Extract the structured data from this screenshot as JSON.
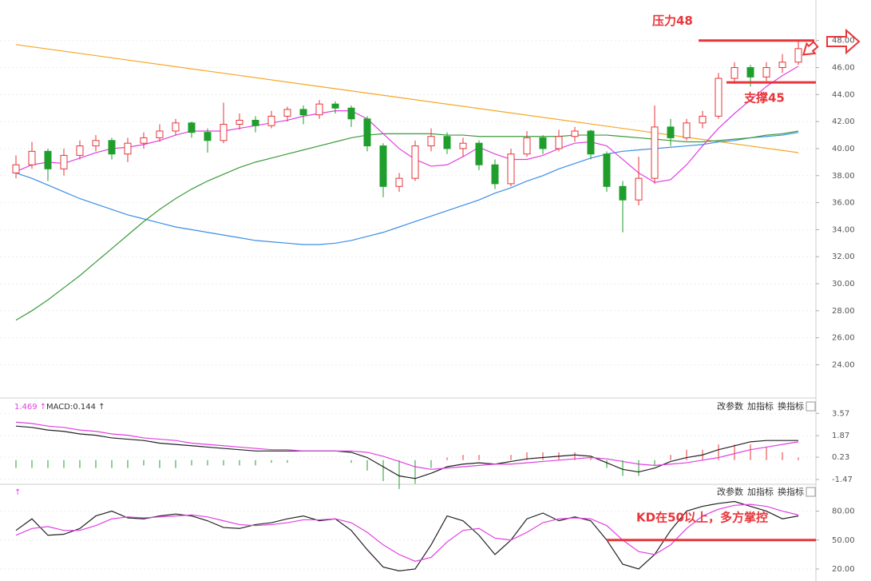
{
  "chart_data": [
    {
      "type": "candlestick",
      "up_color": "#e8353a",
      "down_color": "#1f9e2c",
      "open": [
        38.2,
        38.8,
        39.8,
        38.5,
        39.5,
        40.2,
        40.6,
        39.6,
        40.4,
        40.8,
        41.3,
        41.9,
        41.2,
        40.6,
        41.8,
        42.1,
        41.7,
        42.4,
        42.9,
        42.5,
        43.3,
        43.0,
        42.2,
        40.2,
        37.2,
        37.8,
        40.2,
        40.9,
        40.0,
        40.4,
        38.8,
        37.4,
        39.6,
        40.8,
        40.0,
        40.9,
        41.3,
        39.6,
        37.2,
        36.2,
        37.8,
        41.6,
        40.8,
        41.9,
        42.4,
        45.2,
        46.0,
        45.3,
        46.0,
        46.4
      ],
      "high": [
        39.5,
        40.5,
        40.0,
        40.0,
        40.6,
        41.0,
        40.8,
        40.8,
        41.2,
        41.8,
        42.2,
        42.0,
        41.5,
        43.4,
        42.6,
        42.4,
        42.8,
        43.1,
        43.2,
        43.6,
        43.5,
        43.2,
        42.4,
        40.4,
        38.2,
        40.6,
        41.5,
        41.2,
        40.8,
        40.6,
        39.2,
        40.0,
        41.3,
        41.0,
        41.4,
        41.6,
        41.4,
        39.8,
        37.6,
        39.4,
        43.2,
        42.2,
        42.2,
        42.8,
        45.6,
        46.4,
        46.2,
        46.4,
        47.0,
        48.0
      ],
      "low": [
        37.8,
        38.5,
        37.6,
        38.0,
        39.2,
        39.8,
        39.2,
        39.0,
        40.0,
        40.5,
        41.0,
        40.8,
        39.7,
        40.4,
        41.4,
        41.2,
        41.5,
        42.0,
        41.8,
        42.2,
        42.6,
        41.6,
        39.8,
        36.4,
        36.8,
        37.6,
        39.8,
        39.6,
        39.4,
        38.4,
        37.0,
        37.2,
        39.4,
        39.6,
        39.8,
        40.5,
        39.2,
        36.8,
        33.8,
        35.8,
        37.4,
        40.2,
        40.6,
        41.5,
        42.2,
        44.8,
        44.6,
        45.0,
        45.6,
        46.2
      ],
      "close": [
        38.8,
        39.8,
        38.5,
        39.5,
        40.2,
        40.6,
        39.6,
        40.4,
        40.8,
        41.3,
        41.9,
        41.2,
        40.6,
        41.8,
        42.1,
        41.7,
        42.4,
        42.9,
        42.5,
        43.3,
        43.0,
        42.2,
        40.2,
        37.2,
        37.8,
        40.2,
        40.9,
        40.0,
        40.4,
        38.8,
        37.4,
        39.6,
        40.8,
        40.0,
        40.9,
        41.3,
        39.6,
        37.2,
        36.2,
        37.8,
        41.6,
        40.8,
        41.9,
        42.4,
        45.2,
        46.0,
        45.3,
        46.0,
        46.4,
        47.4
      ],
      "series": [
        {
          "color": "#3a8ee6",
          "values": [
            38.2,
            37.8,
            37.3,
            36.8,
            36.3,
            35.9,
            35.5,
            35.1,
            34.8,
            34.5,
            34.2,
            34.0,
            33.8,
            33.6,
            33.4,
            33.2,
            33.1,
            33.0,
            32.9,
            32.9,
            33.0,
            33.2,
            33.5,
            33.8,
            34.2,
            34.6,
            35.0,
            35.4,
            35.8,
            36.2,
            36.7,
            37.1,
            37.6,
            38.0,
            38.5,
            38.9,
            39.3,
            39.6,
            39.8,
            39.9,
            40.0,
            40.1,
            40.2,
            40.3,
            40.5,
            40.6,
            40.8,
            40.9,
            41.0,
            41.2
          ]
        },
        {
          "color": "#3c9a3c",
          "values": [
            27.3,
            28.0,
            28.8,
            29.7,
            30.6,
            31.6,
            32.6,
            33.6,
            34.6,
            35.5,
            36.3,
            37.0,
            37.6,
            38.1,
            38.6,
            39.0,
            39.3,
            39.6,
            39.9,
            40.2,
            40.5,
            40.8,
            41.0,
            41.1,
            41.1,
            41.1,
            41.1,
            41.0,
            41.0,
            40.9,
            40.9,
            40.9,
            40.9,
            40.9,
            40.9,
            41.0,
            41.0,
            41.0,
            40.9,
            40.8,
            40.7,
            40.6,
            40.5,
            40.5,
            40.6,
            40.7,
            40.8,
            41.0,
            41.1,
            41.3
          ]
        },
        {
          "color": "#e040e0",
          "values": [
            38.3,
            38.8,
            39.0,
            38.9,
            39.3,
            39.7,
            40.0,
            40.1,
            40.3,
            40.6,
            41.0,
            41.3,
            41.3,
            41.3,
            41.5,
            41.7,
            41.9,
            42.1,
            42.4,
            42.6,
            42.8,
            42.8,
            42.2,
            41.1,
            40.0,
            39.2,
            38.7,
            38.8,
            39.4,
            40.1,
            39.6,
            39.2,
            39.2,
            39.5,
            40.0,
            40.4,
            40.5,
            40.2,
            39.2,
            38.2,
            37.5,
            37.7,
            38.8,
            40.2,
            41.5,
            42.6,
            43.6,
            44.6,
            45.4,
            46.1
          ]
        }
      ],
      "trendline": {
        "color": "#f5a623",
        "values": [
          47.7,
          39.7
        ]
      },
      "annotations": [
        {
          "text": "压力48",
          "value": 48
        },
        {
          "text": "支撑45",
          "value": 44.9
        }
      ],
      "ylim": [
        21.6,
        51
      ],
      "yticks": [
        {
          "value": 24,
          "label": "24.00"
        },
        {
          "value": 26,
          "label": "26.00"
        },
        {
          "value": 28,
          "label": "28.00"
        },
        {
          "value": 30,
          "label": "30.00"
        },
        {
          "value": 32,
          "label": "32.00"
        },
        {
          "value": 34,
          "label": "34.00"
        },
        {
          "value": 36,
          "label": "36.00"
        },
        {
          "value": 38,
          "label": "38.00"
        },
        {
          "value": 40,
          "label": "40.00"
        },
        {
          "value": 42,
          "label": "42.00"
        },
        {
          "value": 44,
          "label": "44.00"
        },
        {
          "value": 46,
          "label": "46.00"
        },
        {
          "value": 48,
          "label": "48.00"
        }
      ]
    },
    {
      "type": "macd",
      "header": [
        "1.469 ↑",
        "MACD:0.144 ↑"
      ],
      "toolbar": [
        "改参数",
        "加指标",
        "换指标"
      ],
      "series": [
        {
          "color": "#222222",
          "values": [
            2.6,
            2.5,
            2.3,
            2.2,
            2.0,
            1.9,
            1.7,
            1.6,
            1.5,
            1.3,
            1.2,
            1.1,
            1.0,
            0.9,
            0.8,
            0.7,
            0.7,
            0.7,
            0.7,
            0.7,
            0.7,
            0.6,
            0.2,
            -0.5,
            -1.2,
            -1.4,
            -1.0,
            -0.5,
            -0.3,
            -0.2,
            -0.3,
            -0.1,
            0.1,
            0.2,
            0.3,
            0.4,
            0.3,
            -0.2,
            -0.7,
            -0.9,
            -0.6,
            -0.1,
            0.2,
            0.4,
            0.8,
            1.1,
            1.4,
            1.5,
            1.5,
            1.5
          ]
        },
        {
          "color": "#e040e0",
          "values": [
            2.9,
            2.8,
            2.6,
            2.5,
            2.3,
            2.2,
            2.0,
            1.9,
            1.7,
            1.6,
            1.5,
            1.3,
            1.2,
            1.1,
            1.0,
            0.9,
            0.8,
            0.8,
            0.7,
            0.7,
            0.7,
            0.7,
            0.6,
            0.3,
            -0.1,
            -0.5,
            -0.7,
            -0.6,
            -0.5,
            -0.4,
            -0.3,
            -0.3,
            -0.2,
            -0.1,
            0.0,
            0.1,
            0.2,
            0.1,
            -0.1,
            -0.3,
            -0.4,
            -0.3,
            -0.2,
            0.0,
            0.2,
            0.5,
            0.8,
            1.0,
            1.2,
            1.4
          ]
        }
      ],
      "histogram": [
        -0.6,
        -0.6,
        -0.6,
        -0.6,
        -0.6,
        -0.6,
        -0.6,
        -0.6,
        -0.4,
        -0.6,
        -0.6,
        -0.4,
        -0.4,
        -0.4,
        -0.4,
        -0.4,
        -0.2,
        -0.2,
        0,
        0,
        0,
        -0.2,
        -0.8,
        -1.6,
        -2.2,
        -1.8,
        -0.6,
        0.2,
        0.4,
        0.4,
        0,
        0.4,
        0.6,
        0.6,
        0.6,
        0.6,
        0.2,
        -0.6,
        -1.2,
        -1.2,
        -0.4,
        0.4,
        0.8,
        0.8,
        1.2,
        1.2,
        1.2,
        1.0,
        0.6,
        0.2
      ],
      "up_color": "#e8353a",
      "down_color": "#1f9e2c",
      "ylim": [
        -1.78,
        4.44
      ],
      "yticks": [
        3.57,
        1.87,
        0.23,
        -1.47
      ]
    },
    {
      "type": "kd",
      "header": [
        "↑"
      ],
      "toolbar": [
        "改参数",
        "加指标",
        "换指标"
      ],
      "series": [
        {
          "color": "#222222",
          "values": [
            60,
            72,
            55,
            56,
            62,
            75,
            80,
            73,
            72,
            75,
            77,
            75,
            70,
            63,
            62,
            66,
            68,
            72,
            75,
            70,
            72,
            60,
            40,
            22,
            18,
            20,
            45,
            75,
            70,
            55,
            35,
            50,
            72,
            78,
            70,
            74,
            70,
            50,
            25,
            20,
            35,
            60,
            80,
            85,
            88,
            90,
            85,
            80,
            72,
            75
          ]
        },
        {
          "color": "#e040e0",
          "values": [
            55,
            62,
            64,
            60,
            60,
            65,
            72,
            74,
            73,
            74,
            75,
            76,
            74,
            70,
            66,
            65,
            66,
            68,
            71,
            71,
            72,
            68,
            58,
            45,
            35,
            28,
            32,
            48,
            60,
            62,
            52,
            50,
            58,
            68,
            72,
            73,
            72,
            65,
            50,
            38,
            35,
            45,
            62,
            75,
            82,
            86,
            87,
            85,
            80,
            76
          ]
        }
      ],
      "annotations": [
        {
          "text": "KD在50以上，多方掌控",
          "value": 50
        }
      ],
      "ylim": [
        15,
        104.5
      ],
      "yticks": [
        {
          "value": 80,
          "label": "80.00"
        },
        {
          "value": 50,
          "label": "50.00"
        },
        {
          "value": 20,
          "label": "20.00"
        }
      ]
    }
  ]
}
